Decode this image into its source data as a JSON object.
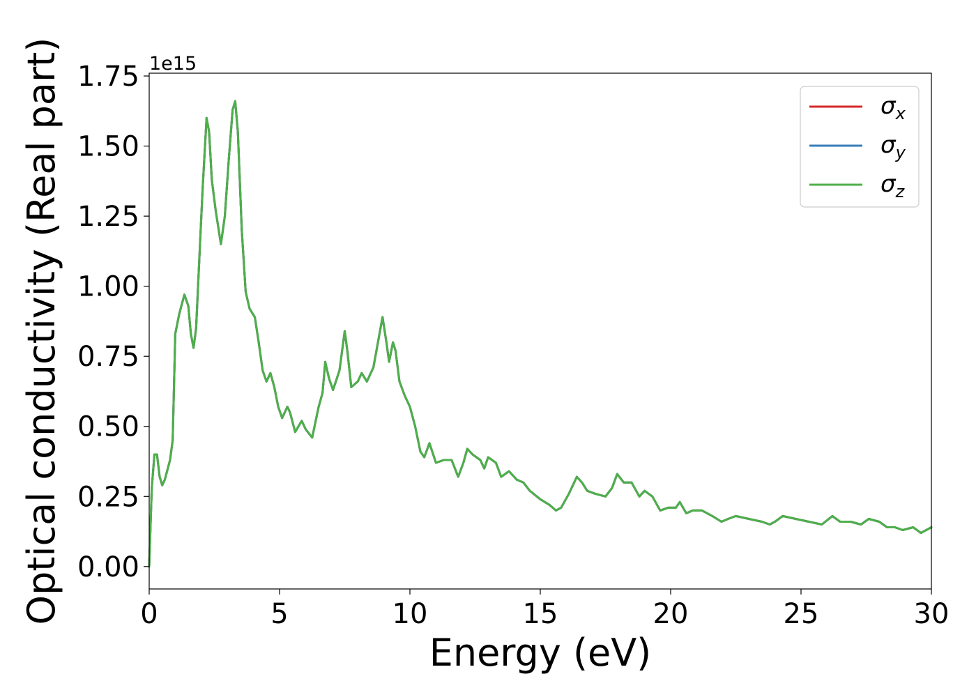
{
  "chart_data": {
    "type": "line",
    "xlabel": "Energy (eV)",
    "ylabel": "Optical conductivity (Real part)",
    "y_offset_label": "1e15",
    "xlim": [
      0,
      30
    ],
    "ylim": [
      -0.08,
      1.76
    ],
    "x_ticks": [
      0,
      5,
      10,
      15,
      20,
      25,
      30
    ],
    "x_tick_labels": [
      "0",
      "5",
      "10",
      "15",
      "20",
      "25",
      "30"
    ],
    "y_ticks": [
      0,
      0.25,
      0.5,
      0.75,
      1.0,
      1.25,
      1.5,
      1.75
    ],
    "y_tick_labels": [
      "0.00",
      "0.25",
      "0.50",
      "0.75",
      "1.00",
      "1.25",
      "1.50",
      "1.75"
    ],
    "grid": false,
    "legend_position": "top-right",
    "colors": {
      "sigma_x": "#d62728",
      "sigma_y": "#377eb8",
      "sigma_z": "#4daf4a"
    },
    "legend": [
      {
        "symbol": "σ",
        "sub": "x",
        "color": "#d62728"
      },
      {
        "symbol": "σ",
        "sub": "y",
        "color": "#377eb8"
      },
      {
        "symbol": "σ",
        "sub": "z",
        "color": "#4daf4a"
      }
    ],
    "series_values": [
      [
        0.0,
        0.0
      ],
      [
        0.1,
        0.28
      ],
      [
        0.2,
        0.4
      ],
      [
        0.3,
        0.4
      ],
      [
        0.4,
        0.32
      ],
      [
        0.5,
        0.29
      ],
      [
        0.6,
        0.31
      ],
      [
        0.8,
        0.38
      ],
      [
        0.9,
        0.45
      ],
      [
        1.0,
        0.83
      ],
      [
        1.15,
        0.9
      ],
      [
        1.35,
        0.97
      ],
      [
        1.5,
        0.93
      ],
      [
        1.6,
        0.83
      ],
      [
        1.7,
        0.78
      ],
      [
        1.8,
        0.85
      ],
      [
        1.95,
        1.15
      ],
      [
        2.05,
        1.35
      ],
      [
        2.2,
        1.6
      ],
      [
        2.3,
        1.55
      ],
      [
        2.4,
        1.38
      ],
      [
        2.55,
        1.27
      ],
      [
        2.75,
        1.15
      ],
      [
        2.9,
        1.25
      ],
      [
        3.05,
        1.45
      ],
      [
        3.2,
        1.63
      ],
      [
        3.3,
        1.66
      ],
      [
        3.4,
        1.55
      ],
      [
        3.55,
        1.2
      ],
      [
        3.7,
        0.98
      ],
      [
        3.85,
        0.92
      ],
      [
        4.05,
        0.89
      ],
      [
        4.2,
        0.8
      ],
      [
        4.35,
        0.7
      ],
      [
        4.5,
        0.66
      ],
      [
        4.65,
        0.69
      ],
      [
        4.8,
        0.64
      ],
      [
        4.95,
        0.57
      ],
      [
        5.1,
        0.53
      ],
      [
        5.3,
        0.57
      ],
      [
        5.4,
        0.55
      ],
      [
        5.6,
        0.48
      ],
      [
        5.85,
        0.52
      ],
      [
        6.0,
        0.49
      ],
      [
        6.25,
        0.46
      ],
      [
        6.5,
        0.57
      ],
      [
        6.65,
        0.62
      ],
      [
        6.75,
        0.73
      ],
      [
        6.9,
        0.67
      ],
      [
        7.05,
        0.63
      ],
      [
        7.3,
        0.7
      ],
      [
        7.5,
        0.84
      ],
      [
        7.6,
        0.77
      ],
      [
        7.75,
        0.64
      ],
      [
        8.0,
        0.66
      ],
      [
        8.15,
        0.69
      ],
      [
        8.35,
        0.66
      ],
      [
        8.6,
        0.71
      ],
      [
        8.95,
        0.89
      ],
      [
        9.1,
        0.8
      ],
      [
        9.2,
        0.73
      ],
      [
        9.35,
        0.8
      ],
      [
        9.45,
        0.77
      ],
      [
        9.6,
        0.66
      ],
      [
        9.8,
        0.61
      ],
      [
        10.0,
        0.57
      ],
      [
        10.2,
        0.5
      ],
      [
        10.4,
        0.41
      ],
      [
        10.55,
        0.39
      ],
      [
        10.75,
        0.44
      ],
      [
        11.0,
        0.37
      ],
      [
        11.3,
        0.38
      ],
      [
        11.6,
        0.38
      ],
      [
        11.85,
        0.32
      ],
      [
        12.05,
        0.37
      ],
      [
        12.2,
        0.42
      ],
      [
        12.4,
        0.4
      ],
      [
        12.7,
        0.38
      ],
      [
        12.85,
        0.35
      ],
      [
        13.0,
        0.39
      ],
      [
        13.3,
        0.37
      ],
      [
        13.5,
        0.32
      ],
      [
        13.8,
        0.34
      ],
      [
        14.1,
        0.31
      ],
      [
        14.35,
        0.3
      ],
      [
        14.6,
        0.27
      ],
      [
        15.0,
        0.24
      ],
      [
        15.35,
        0.22
      ],
      [
        15.6,
        0.2
      ],
      [
        15.8,
        0.21
      ],
      [
        16.1,
        0.26
      ],
      [
        16.4,
        0.32
      ],
      [
        16.6,
        0.3
      ],
      [
        16.8,
        0.27
      ],
      [
        17.1,
        0.26
      ],
      [
        17.5,
        0.25
      ],
      [
        17.75,
        0.28
      ],
      [
        17.95,
        0.33
      ],
      [
        18.2,
        0.3
      ],
      [
        18.5,
        0.3
      ],
      [
        18.8,
        0.25
      ],
      [
        19.0,
        0.27
      ],
      [
        19.3,
        0.25
      ],
      [
        19.6,
        0.2
      ],
      [
        19.9,
        0.21
      ],
      [
        20.2,
        0.21
      ],
      [
        20.35,
        0.23
      ],
      [
        20.6,
        0.19
      ],
      [
        20.85,
        0.2
      ],
      [
        21.2,
        0.2
      ],
      [
        21.6,
        0.18
      ],
      [
        21.95,
        0.16
      ],
      [
        22.2,
        0.17
      ],
      [
        22.5,
        0.18
      ],
      [
        23.0,
        0.17
      ],
      [
        23.5,
        0.16
      ],
      [
        23.8,
        0.15
      ],
      [
        24.0,
        0.16
      ],
      [
        24.3,
        0.18
      ],
      [
        24.8,
        0.17
      ],
      [
        25.3,
        0.16
      ],
      [
        25.8,
        0.15
      ],
      [
        26.2,
        0.18
      ],
      [
        26.5,
        0.16
      ],
      [
        26.9,
        0.16
      ],
      [
        27.3,
        0.15
      ],
      [
        27.6,
        0.17
      ],
      [
        28.0,
        0.16
      ],
      [
        28.3,
        0.14
      ],
      [
        28.6,
        0.14
      ],
      [
        28.9,
        0.13
      ],
      [
        29.3,
        0.14
      ],
      [
        29.6,
        0.12
      ],
      [
        30.0,
        0.14
      ]
    ]
  }
}
